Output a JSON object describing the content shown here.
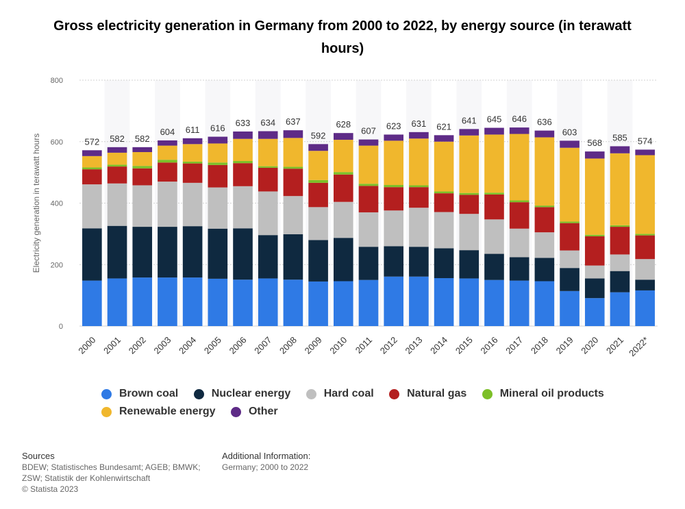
{
  "chart_data": {
    "type": "stacked-bar",
    "title": "Gross electricity generation in Germany from 2000 to 2022, by energy source (in terawatt hours)",
    "xlabel": "",
    "ylabel": "Electricity generation in terawatt hours",
    "ylim": [
      0,
      800
    ],
    "yticks": [
      0,
      200,
      400,
      600,
      800
    ],
    "categories": [
      "2000",
      "2001",
      "2002",
      "2003",
      "2004",
      "2005",
      "2006",
      "2007",
      "2008",
      "2009",
      "2010",
      "2011",
      "2012",
      "2013",
      "2014",
      "2015",
      "2016",
      "2017",
      "2018",
      "2019",
      "2020",
      "2021",
      "2022*"
    ],
    "totals": [
      572,
      582,
      582,
      604,
      611,
      616,
      633,
      634,
      637,
      592,
      628,
      607,
      623,
      631,
      621,
      641,
      645,
      646,
      636,
      603,
      568,
      585,
      574
    ],
    "series": [
      {
        "name": "Brown coal",
        "color": "#2f7ae5",
        "values": [
          148,
          155,
          158,
          158,
          158,
          154,
          151,
          155,
          151,
          145,
          146,
          150,
          161,
          161,
          156,
          155,
          150,
          148,
          146,
          114,
          91,
          110,
          116
        ]
      },
      {
        "name": "Nuclear energy",
        "color": "#0f2940",
        "values": [
          170,
          171,
          165,
          165,
          167,
          163,
          167,
          141,
          148,
          135,
          141,
          108,
          99,
          97,
          97,
          92,
          85,
          76,
          76,
          75,
          64,
          69,
          35
        ]
      },
      {
        "name": "Hard coal",
        "color": "#bfbfbf",
        "values": [
          143,
          138,
          135,
          147,
          141,
          134,
          137,
          142,
          124,
          107,
          117,
          112,
          116,
          127,
          118,
          118,
          112,
          93,
          83,
          57,
          42,
          54,
          67
        ]
      },
      {
        "name": "Natural gas",
        "color": "#b41f1f",
        "values": [
          49,
          55,
          55,
          62,
          63,
          73,
          75,
          77,
          89,
          79,
          89,
          86,
          76,
          67,
          61,
          62,
          81,
          86,
          82,
          89,
          95,
          90,
          77
        ]
      },
      {
        "name": "Mineral oil products",
        "color": "#7cbf27",
        "values": [
          6,
          6,
          8,
          9,
          6,
          8,
          7,
          5,
          6,
          9,
          8,
          7,
          7,
          6,
          6,
          6,
          6,
          6,
          5,
          5,
          5,
          5,
          5
        ]
      },
      {
        "name": "Renewable energy",
        "color": "#f0b72d",
        "values": [
          37,
          39,
          45,
          46,
          57,
          62,
          72,
          89,
          94,
          95,
          105,
          124,
          144,
          152,
          162,
          187,
          189,
          216,
          222,
          240,
          248,
          234,
          256
        ]
      },
      {
        "name": "Other",
        "color": "#5e2b87",
        "values": [
          19,
          18,
          16,
          17,
          19,
          22,
          24,
          25,
          25,
          22,
          22,
          20,
          20,
          21,
          21,
          21,
          22,
          21,
          22,
          23,
          23,
          23,
          18
        ]
      }
    ]
  },
  "legend": [
    {
      "label": "Brown coal",
      "color": "#2f7ae5"
    },
    {
      "label": "Nuclear energy",
      "color": "#0f2940"
    },
    {
      "label": "Hard coal",
      "color": "#bfbfbf"
    },
    {
      "label": "Natural gas",
      "color": "#b41f1f"
    },
    {
      "label": "Mineral oil products",
      "color": "#7cbf27"
    },
    {
      "label": "Renewable energy",
      "color": "#f0b72d"
    },
    {
      "label": "Other",
      "color": "#5e2b87"
    }
  ],
  "footer": {
    "sources_heading": "Sources",
    "sources_line1": "BDEW; Statistisches Bundesamt; AGEB; BMWK;",
    "sources_line2": "ZSW; Statistik der Kohlenwirtschaft",
    "copyright": "© Statista 2023",
    "additional_heading": "Additional Information:",
    "additional_text": "Germany; 2000 to 2022"
  }
}
